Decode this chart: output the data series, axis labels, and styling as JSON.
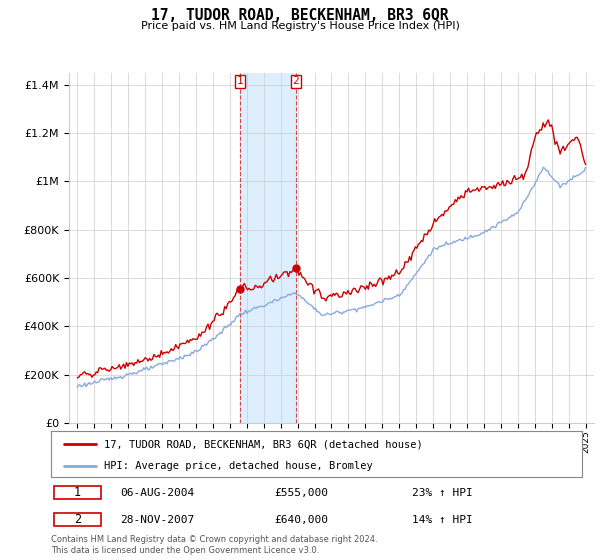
{
  "title": "17, TUDOR ROAD, BECKENHAM, BR3 6QR",
  "subtitle": "Price paid vs. HM Land Registry's House Price Index (HPI)",
  "red_label": "17, TUDOR ROAD, BECKENHAM, BR3 6QR (detached house)",
  "blue_label": "HPI: Average price, detached house, Bromley",
  "transaction1_date": "06-AUG-2004",
  "transaction1_price": "£555,000",
  "transaction1_hpi": "23% ↑ HPI",
  "transaction2_date": "28-NOV-2007",
  "transaction2_price": "£640,000",
  "transaction2_hpi": "14% ↑ HPI",
  "footnote": "Contains HM Land Registry data © Crown copyright and database right 2024.\nThis data is licensed under the Open Government Licence v3.0.",
  "transaction1_x": 2004.583,
  "transaction2_x": 2007.9,
  "transaction1_y": 555000,
  "transaction2_y": 640000,
  "red_color": "#cc0000",
  "blue_color": "#88aadd",
  "shaded_color": "#ddeeff",
  "grid_color": "#cccccc",
  "background_color": "#ffffff",
  "ylim": [
    0,
    1450000
  ],
  "yticks": [
    0,
    200000,
    400000,
    600000,
    800000,
    1000000,
    1200000,
    1400000
  ],
  "ytick_labels": [
    "£0",
    "£200K",
    "£400K",
    "£600K",
    "£800K",
    "£1M",
    "£1.2M",
    "£1.4M"
  ],
  "xlim_left": 1994.5,
  "xlim_right": 2025.5
}
